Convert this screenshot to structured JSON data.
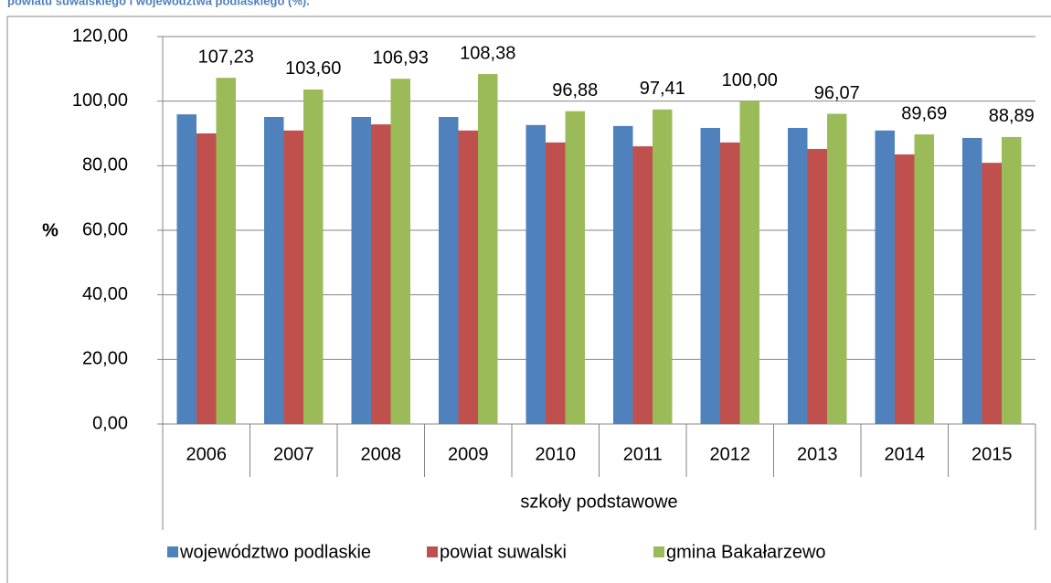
{
  "caption": "powiatu suwalskiego i województwa podlaskiego (%).",
  "chart_data": {
    "type": "bar",
    "y_label": "%",
    "categories": [
      "2006",
      "2007",
      "2008",
      "2009",
      "2010",
      "2011",
      "2012",
      "2013",
      "2014",
      "2015"
    ],
    "group_label": "szkoły podstawowe",
    "series": [
      {
        "name": "województwo podlaskie",
        "color": "#4f81bd",
        "values": [
          95.9,
          95.1,
          95.1,
          95.1,
          92.6,
          92.3,
          91.7,
          91.7,
          90.9,
          88.6
        ]
      },
      {
        "name": "powiat suwalski",
        "color": "#c0504d",
        "values": [
          90.0,
          90.9,
          92.8,
          90.9,
          87.2,
          86.0,
          87.2,
          85.2,
          83.5,
          80.9
        ]
      },
      {
        "name": "gmina Bakałarzewo",
        "color": "#9bbb59",
        "values": [
          107.23,
          103.6,
          106.93,
          108.38,
          96.88,
          97.41,
          100.0,
          96.07,
          89.69,
          88.89
        ],
        "value_labels": [
          "107,23",
          "103,60",
          "106,93",
          "108,38",
          "96,88",
          "97,41",
          "100,00",
          "96,07",
          "89,69",
          "88,89"
        ]
      }
    ],
    "ylim": [
      0,
      120
    ],
    "yticks": [
      {
        "value": 0,
        "label": "0,00"
      },
      {
        "value": 20,
        "label": "20,00"
      },
      {
        "value": 40,
        "label": "40,00"
      },
      {
        "value": 60,
        "label": "60,00"
      },
      {
        "value": 80,
        "label": "80,00"
      },
      {
        "value": 100,
        "label": "100,00"
      },
      {
        "value": 120,
        "label": "120,00"
      }
    ],
    "grid": true
  }
}
